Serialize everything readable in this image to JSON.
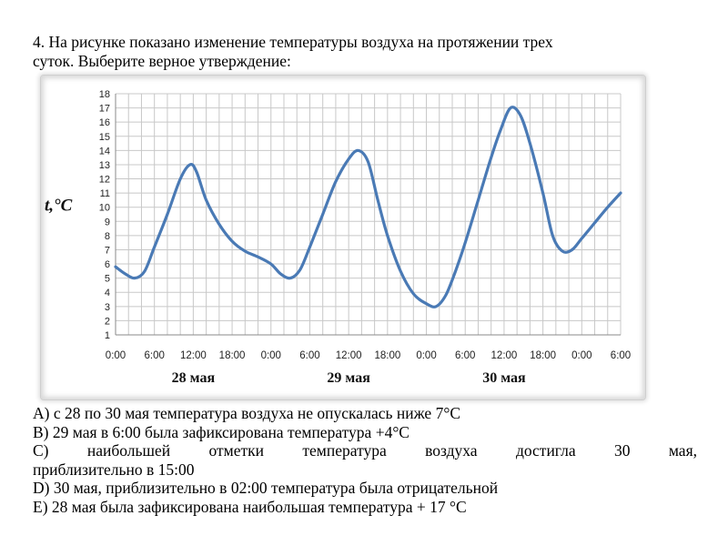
{
  "question": {
    "line1": "4. На рисунке показано изменение температуры воздуха на протяжении трех",
    "line2": "суток. Выберите верное утверждение:"
  },
  "chart_data": {
    "type": "line",
    "ylabel": "t,°C",
    "y_ticks": [
      1,
      2,
      3,
      4,
      5,
      6,
      7,
      8,
      9,
      10,
      11,
      12,
      13,
      14,
      15,
      16,
      17,
      18
    ],
    "ylim": [
      1,
      18
    ],
    "x_tick_labels": [
      "0:00",
      "6:00",
      "12:00",
      "18:00",
      "0:00",
      "6:00",
      "12:00",
      "18:00",
      "0:00",
      "6:00",
      "12:00",
      "18:00",
      "0:00",
      "6:00"
    ],
    "x_ticks_hours": [
      0,
      6,
      12,
      18,
      24,
      30,
      36,
      42,
      48,
      54,
      60,
      66,
      72,
      78
    ],
    "xlim": [
      0,
      78
    ],
    "day_labels": [
      {
        "text": "28 мая",
        "hour": 12
      },
      {
        "text": "29 мая",
        "hour": 36
      },
      {
        "text": "30 мая",
        "hour": 60
      }
    ],
    "grid": true,
    "line_color": "#4a7ab5",
    "series": [
      {
        "points": [
          [
            0,
            5.8
          ],
          [
            1.5,
            5.3
          ],
          [
            3,
            5.0
          ],
          [
            4.5,
            5.5
          ],
          [
            6,
            7.2
          ],
          [
            8,
            9.5
          ],
          [
            10,
            12.0
          ],
          [
            11.5,
            13.0
          ],
          [
            12.5,
            12.5
          ],
          [
            14,
            10.5
          ],
          [
            16,
            8.8
          ],
          [
            18,
            7.6
          ],
          [
            20,
            6.9
          ],
          [
            22,
            6.5
          ],
          [
            24,
            6.0
          ],
          [
            25.5,
            5.3
          ],
          [
            27,
            5.0
          ],
          [
            28.5,
            5.6
          ],
          [
            30,
            7.2
          ],
          [
            32,
            9.5
          ],
          [
            34,
            11.8
          ],
          [
            36,
            13.4
          ],
          [
            37.5,
            14.0
          ],
          [
            39,
            13.2
          ],
          [
            40.5,
            10.5
          ],
          [
            42,
            8.0
          ],
          [
            44,
            5.5
          ],
          [
            46,
            3.9
          ],
          [
            48,
            3.2
          ],
          [
            49.5,
            3.0
          ],
          [
            51,
            3.8
          ],
          [
            52.5,
            5.5
          ],
          [
            54,
            7.5
          ],
          [
            56,
            10.5
          ],
          [
            58,
            13.5
          ],
          [
            59.5,
            15.5
          ],
          [
            61,
            17.0
          ],
          [
            62.5,
            16.5
          ],
          [
            64,
            14.5
          ],
          [
            66,
            11.0
          ],
          [
            67.5,
            8.0
          ],
          [
            69,
            6.9
          ],
          [
            70.5,
            7.0
          ],
          [
            72,
            7.8
          ],
          [
            74,
            8.9
          ],
          [
            76,
            10.0
          ],
          [
            78,
            11.0
          ]
        ]
      }
    ]
  },
  "answers": [
    {
      "text": "А) с 28 по 30 мая температура воздуха не опускалась ниже 7°С"
    },
    {
      "text": "В) 29 мая в 6:00 была зафиксирована температура +4°С"
    },
    {
      "text": "С) наибольшей отметки температура воздуха достигла 30 мая,"
    },
    {
      "text": "приблизительно в 15:00"
    },
    {
      "text": "D) 30 мая, приблизительно в 02:00 температура была отрицательной"
    },
    {
      "text": "Е) 28 мая была зафиксирована наибольшая температура + 17 °С"
    }
  ]
}
